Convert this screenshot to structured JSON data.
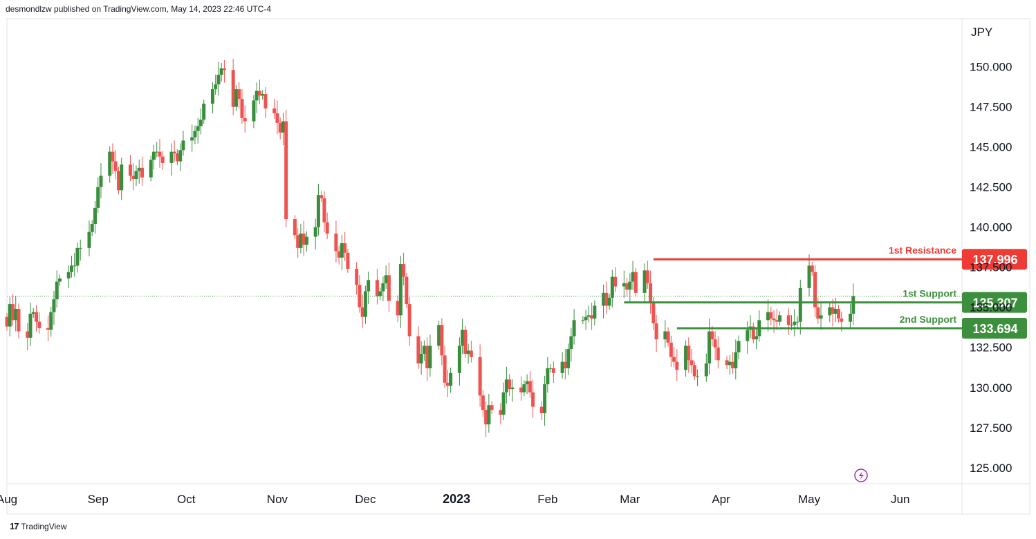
{
  "header": {
    "text": "desmondlzw published on TradingView.com, May 14, 2023 22:46 UTC-4"
  },
  "footer": {
    "brand": "TradingView",
    "logo": "17"
  },
  "colors": {
    "up": "#388e3c",
    "down": "#ef5350",
    "resistance": "#ef3b36",
    "support": "#3c8f3c",
    "grid": "#e0e3eb"
  },
  "chart_data": {
    "type": "candlestick",
    "currency_label": "JPY",
    "ylim": [
      124.0,
      153.0
    ],
    "y_ticks": [
      "125.000",
      "127.500",
      "130.000",
      "132.500",
      "135.000",
      "137.500",
      "140.000",
      "142.500",
      "145.000",
      "147.500",
      "150.000"
    ],
    "y_tick_values": [
      125.0,
      127.5,
      130.0,
      132.5,
      135.0,
      137.5,
      140.0,
      142.5,
      145.0,
      147.5,
      150.0
    ],
    "x_range": [
      "2022-08-01",
      "2023-06-22"
    ],
    "x_labels": [
      {
        "label": "Aug",
        "date": "2022-08-01",
        "bold": false
      },
      {
        "label": "Sep",
        "date": "2022-09-01",
        "bold": false
      },
      {
        "label": "Oct",
        "date": "2022-10-01",
        "bold": false
      },
      {
        "label": "Nov",
        "date": "2022-11-01",
        "bold": false
      },
      {
        "label": "Dec",
        "date": "2022-12-01",
        "bold": false
      },
      {
        "label": "2023",
        "date": "2023-01-01",
        "bold": true
      },
      {
        "label": "Feb",
        "date": "2023-02-01",
        "bold": false
      },
      {
        "label": "Mar",
        "date": "2023-03-01",
        "bold": false
      },
      {
        "label": "Apr",
        "date": "2023-04-01",
        "bold": false
      },
      {
        "label": "May",
        "date": "2023-05-01",
        "bold": false
      },
      {
        "label": "Jun",
        "date": "2023-06-01",
        "bold": false
      }
    ],
    "closes": [
      133.8,
      135.2,
      134.2,
      134.9,
      133.5,
      133.1,
      134.6,
      134.7,
      134.1,
      133.7,
      133.6,
      134.7,
      135.5,
      136.6,
      136.8,
      137.2,
      137.6,
      137.6,
      138.7,
      138.7,
      139.7,
      140.2,
      141.2,
      142.5,
      143.2,
      144.7,
      144.1,
      143.5,
      142.3,
      143.9,
      143.2,
      143.0,
      143.5,
      143.7,
      143.1,
      144.2,
      144.7,
      144.7,
      144.4,
      144.0,
      144.7,
      144.6,
      144.1,
      144.8,
      145.4,
      145.6,
      146.0,
      146.3,
      146.7,
      147.7,
      148.6,
      148.9,
      149.5,
      149.9,
      149.8,
      147.5,
      148.6,
      148.0,
      146.8,
      146.6,
      147.9,
      148.5,
      148.2,
      148.3,
      147.4,
      147.1,
      146.5,
      145.9,
      146.6,
      140.5,
      139.5,
      138.7,
      139.6,
      138.9,
      139.4,
      140.0,
      142.0,
      141.8,
      140.3,
      139.6,
      138.5,
      138.1,
      139.0,
      138.4,
      137.4,
      136.4,
      135.0,
      134.4,
      136.0,
      136.7,
      135.7,
      136.0,
      136.5,
      137.0,
      135.4,
      134.5,
      137.7,
      136.9,
      135.2,
      133.2,
      131.5,
      132.1,
      132.6,
      131.2,
      132.6,
      133.9,
      132.0,
      130.3,
      130.1,
      130.9,
      132.6,
      133.6,
      132.1,
      132.3,
      131.9,
      129.5,
      128.6,
      127.7,
      128.9,
      128.6,
      128.3,
      129.7,
      130.5,
      129.9,
      130.0,
      129.7,
      130.2,
      130.4,
      129.7,
      128.8,
      128.4,
      130.2,
      131.2,
      131.2,
      130.9,
      131.6,
      131.2,
      132.4,
      133.2,
      134.2,
      134.2,
      134.4,
      134.5,
      134.3,
      135.1,
      135.9,
      135.1,
      135.6,
      136.9,
      136.3,
      136.5,
      136.1,
      136.6,
      137.2,
      135.9,
      137.3,
      136.5,
      135.3,
      134.0,
      133.0,
      133.5,
      132.8,
      131.9,
      131.6,
      131.1,
      132.6,
      131.7,
      131.4,
      130.7,
      130.7,
      131.5,
      133.5,
      133.0,
      132.5,
      131.7,
      131.4,
      131.6,
      131.2,
      132.2,
      132.9,
      133.6,
      133.8,
      133.0,
      133.2,
      134.2,
      134.7,
      134.3,
      134.2,
      134.1,
      134.5,
      133.9,
      133.9,
      134.1,
      134.1,
      136.2,
      137.6,
      137.2,
      135.0,
      134.3,
      134.5,
      135.0,
      134.6,
      134.9,
      134.3,
      134.1,
      134.6,
      135.7
    ],
    "levels": [
      {
        "name": "1st Resistance",
        "value_label": "137.996",
        "value": 137.996,
        "start_date": "2023-03-09",
        "kind": "resistance"
      },
      {
        "name": "1st Support",
        "value_label": "135.307",
        "value": 135.307,
        "start_date": "2023-02-27",
        "kind": "support"
      },
      {
        "name": "2nd Support",
        "value_label": "133.694",
        "value": 133.694,
        "start_date": "2023-03-17",
        "kind": "support"
      }
    ],
    "last_price_dotted": 135.7,
    "grid": false
  }
}
